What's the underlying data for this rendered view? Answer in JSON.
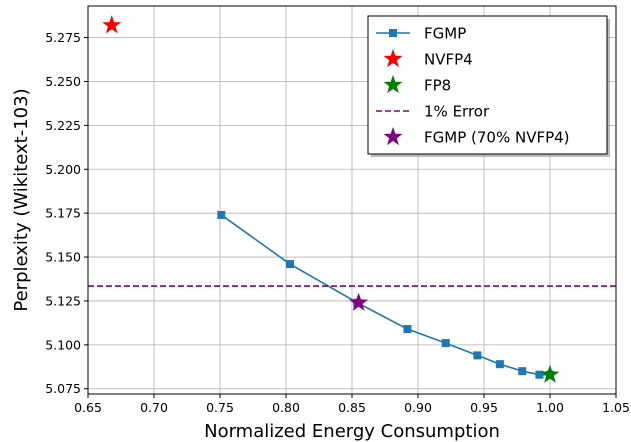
{
  "chart_data": {
    "type": "line",
    "xlabel": "Normalized Energy Consumption",
    "ylabel": "Perplexity (Wikitext-103)",
    "xlim": [
      0.65,
      1.05
    ],
    "ylim": [
      5.072,
      5.293
    ],
    "xticks": [
      0.65,
      0.7,
      0.75,
      0.8,
      0.85,
      0.9,
      0.95,
      1.0,
      1.05
    ],
    "xtick_labels": [
      "0.65",
      "0.70",
      "0.75",
      "0.80",
      "0.85",
      "0.90",
      "0.95",
      "1.00",
      "1.05"
    ],
    "yticks": [
      5.075,
      5.1,
      5.125,
      5.15,
      5.175,
      5.2,
      5.225,
      5.25,
      5.275
    ],
    "ytick_labels": [
      "5.075",
      "5.100",
      "5.125",
      "5.150",
      "5.175",
      "5.200",
      "5.225",
      "5.250",
      "5.275"
    ],
    "grid": true,
    "legend_position": "top-right",
    "series": [
      {
        "name": "FGMP",
        "kind": "line-square",
        "color": "#1f77b4",
        "x": [
          0.751,
          0.803,
          0.854,
          0.892,
          0.921,
          0.945,
          0.962,
          0.979,
          0.992,
          1.0
        ],
        "y": [
          5.174,
          5.146,
          5.124,
          5.109,
          5.101,
          5.094,
          5.089,
          5.085,
          5.083,
          5.083
        ]
      },
      {
        "name": "NVFP4",
        "kind": "star",
        "color": "#ff0000",
        "x": [
          0.668
        ],
        "y": [
          5.282
        ]
      },
      {
        "name": "FP8",
        "kind": "star",
        "color": "#008000",
        "x": [
          1.0
        ],
        "y": [
          5.083
        ]
      },
      {
        "name": "1% Error",
        "kind": "hline",
        "color": "#800080",
        "y": [
          5.1335
        ]
      },
      {
        "name": "FGMP (70% NVFP4)",
        "kind": "star",
        "color": "#800080",
        "x": [
          0.855
        ],
        "y": [
          5.124
        ]
      }
    ]
  }
}
